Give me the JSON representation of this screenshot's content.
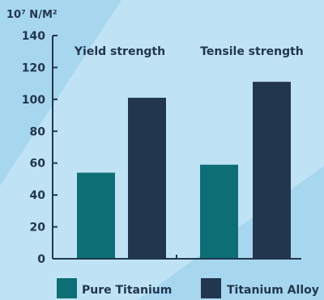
{
  "chart_data": {
    "type": "bar",
    "ylabel": "10⁷ N/M²",
    "ylim": [
      0,
      140
    ],
    "yticks": [
      0,
      20,
      40,
      60,
      80,
      100,
      120,
      140
    ],
    "categories": [
      "Yield strength",
      "Tensile strength"
    ],
    "series": [
      {
        "name": "Pure Titanium",
        "values": [
          54,
          59
        ]
      },
      {
        "name": "Titanium Alloy",
        "values": [
          101,
          111
        ]
      }
    ],
    "grid": false,
    "legend_position": "bottom"
  },
  "colors": {
    "background": "#a7d7ef",
    "highlight": "#bfe3f5",
    "axis": "#22364e",
    "text": "#22364e",
    "series": [
      "#0e6e76",
      "#22364e"
    ]
  }
}
